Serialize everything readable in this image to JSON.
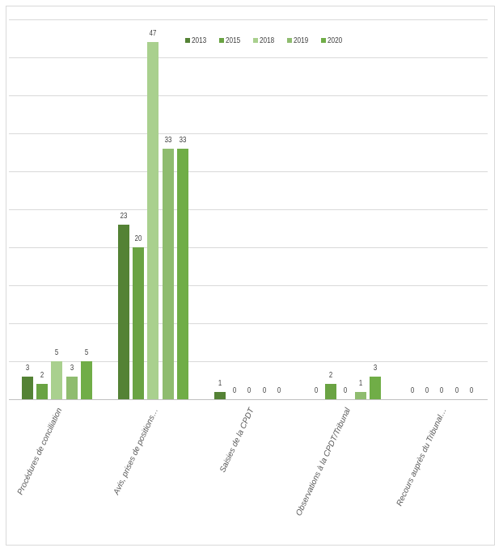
{
  "chart_data": {
    "type": "bar",
    "title": "",
    "xlabel": "",
    "ylabel": "",
    "ylim": [
      0,
      50
    ],
    "grid": true,
    "grid_step": 5,
    "legend_position": "top-right-inside",
    "categories": [
      "Procédures de conciliation",
      "Avis, prises de positions…",
      "Saisies de la CPDT",
      "Observations à la CPDT/Tribunal",
      "Recours auprès du Tribunal…"
    ],
    "series": [
      {
        "name": "2013",
        "color": "#548235",
        "values": [
          3,
          23,
          1,
          0,
          0
        ]
      },
      {
        "name": "2015",
        "color": "#6aa343",
        "values": [
          2,
          20,
          0,
          2,
          0
        ]
      },
      {
        "name": "2018",
        "color": "#a9d08e",
        "values": [
          5,
          47,
          0,
          0,
          0
        ]
      },
      {
        "name": "2019",
        "color": "#8fbc6f",
        "values": [
          3,
          33,
          0,
          1,
          0
        ]
      },
      {
        "name": "2020",
        "color": "#70ad47",
        "values": [
          5,
          33,
          0,
          3,
          0
        ]
      }
    ]
  },
  "legend": {
    "items": [
      {
        "label": "2013",
        "color": "#548235"
      },
      {
        "label": "2015",
        "color": "#6aa343"
      },
      {
        "label": "2018",
        "color": "#a9d08e"
      },
      {
        "label": "2019",
        "color": "#8fbc6f"
      },
      {
        "label": "2020",
        "color": "#70ad47"
      }
    ]
  },
  "colors": {
    "gridline": "#d9d9d9",
    "axis": "#bfbfbf",
    "frame": "#d9d9d9",
    "label_text": "#595959",
    "value_text": "#404040"
  }
}
